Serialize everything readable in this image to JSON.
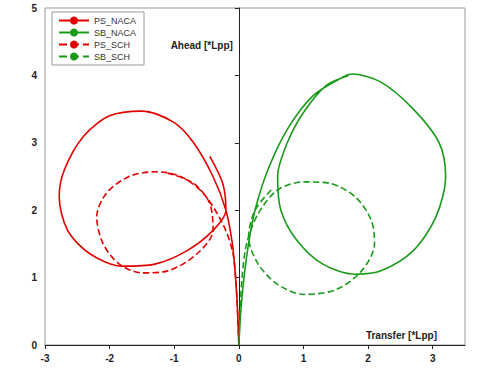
{
  "chart_data": {
    "type": "line",
    "x_label": "Transfer [*Lpp]",
    "y_label": "Ahead [*Lpp]",
    "xlim": [
      -3,
      3.5
    ],
    "ylim": [
      0,
      5
    ],
    "xticks": [
      -3,
      -2,
      -1,
      0,
      1,
      2,
      3
    ],
    "yticks": [
      0,
      1,
      2,
      3,
      4,
      5
    ],
    "grid": false,
    "legend": "upper left",
    "series": [
      {
        "name": "PS_NACA",
        "color": "#e00000",
        "line_style": "solid",
        "x": [
          0,
          -0.02,
          -0.05,
          -0.1,
          -0.2,
          -0.4,
          -0.7,
          -1.0,
          -1.5,
          -2.0,
          -2.4,
          -2.7,
          -2.78,
          -2.65,
          -2.3,
          -1.8,
          -1.3,
          -0.8,
          -0.4,
          -0.2,
          -0.25,
          -0.45
        ],
        "values": [
          0,
          0.5,
          1.0,
          1.5,
          2.0,
          2.5,
          3.0,
          3.3,
          3.47,
          3.4,
          3.1,
          2.6,
          2.2,
          1.7,
          1.35,
          1.17,
          1.2,
          1.4,
          1.7,
          2.0,
          2.4,
          2.8
        ]
      },
      {
        "name": "SB_NACA",
        "color": "#1a9a1a",
        "line_style": "solid",
        "x": [
          0,
          0.03,
          0.08,
          0.15,
          0.25,
          0.45,
          0.75,
          1.15,
          1.6,
          1.75,
          2.2,
          2.7,
          3.1,
          3.2,
          3.05,
          2.7,
          2.2,
          1.8,
          1.3,
          0.9,
          0.65,
          0.6,
          0.75,
          1.0,
          1.35,
          1.7
        ],
        "values": [
          0,
          0.5,
          1.0,
          1.5,
          2.0,
          2.6,
          3.2,
          3.7,
          3.97,
          4.02,
          3.9,
          3.5,
          3.0,
          2.5,
          1.9,
          1.4,
          1.1,
          1.05,
          1.2,
          1.55,
          2.0,
          2.5,
          3.0,
          3.45,
          3.85,
          4.0
        ]
      },
      {
        "name": "PS_SCH",
        "color": "#e00000",
        "line_style": "dashed",
        "x": [
          0,
          -0.02,
          -0.05,
          -0.1,
          -0.25,
          -0.55,
          -0.9,
          -1.3,
          -1.7,
          -2.05,
          -2.2,
          -2.1,
          -1.85,
          -1.5,
          -1.1,
          -0.65,
          -0.4,
          -0.45,
          -0.7,
          -1.1
        ],
        "values": [
          0,
          0.5,
          1.0,
          1.4,
          1.8,
          2.25,
          2.5,
          2.57,
          2.5,
          2.25,
          1.9,
          1.5,
          1.2,
          1.07,
          1.1,
          1.35,
          1.7,
          2.1,
          2.4,
          2.55
        ]
      },
      {
        "name": "SB_SCH",
        "color": "#1a9a1a",
        "line_style": "dashed",
        "x": [
          0,
          0.02,
          0.05,
          0.12,
          0.3,
          0.6,
          1.0,
          1.4,
          1.8,
          2.05,
          2.1,
          1.9,
          1.5,
          1.0,
          0.6,
          0.3,
          0.15,
          0.25,
          0.5
        ],
        "values": [
          0,
          0.5,
          1.0,
          1.5,
          1.95,
          2.3,
          2.42,
          2.4,
          2.2,
          1.85,
          1.5,
          1.1,
          0.82,
          0.75,
          0.9,
          1.2,
          1.6,
          2.0,
          2.3
        ]
      }
    ]
  }
}
